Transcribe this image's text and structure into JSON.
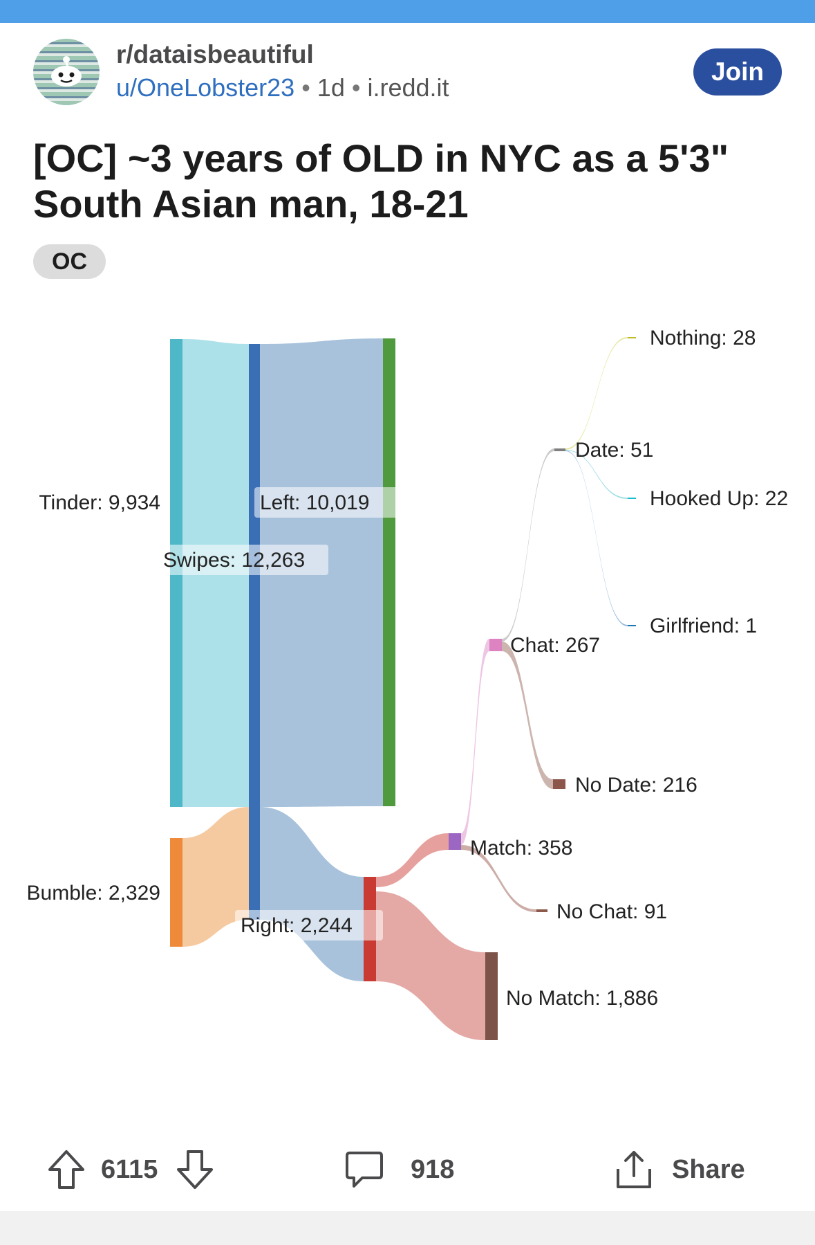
{
  "post": {
    "subreddit": "r/dataisbeautiful",
    "user": "u/OneLobster23",
    "age": "1d",
    "domain": "i.redd.it",
    "join_label": "Join",
    "title": "[OC] ~3 years of OLD in NYC as a 5'3\" South Asian man, 18-21",
    "flair": "OC"
  },
  "chart_data": {
    "type": "sankey",
    "nodes": [
      {
        "id": "tinder",
        "label": "Tinder: 9,934",
        "value": 9934,
        "color": "#4eb8c9"
      },
      {
        "id": "bumble",
        "label": "Bumble: 2,329",
        "value": 2329,
        "color": "#ee8a3a"
      },
      {
        "id": "swipes",
        "label": "Swipes: 12,263",
        "value": 12263,
        "color": "#3a6fb5"
      },
      {
        "id": "left",
        "label": "Left: 10,019",
        "value": 10019,
        "color": "#4f9a3c"
      },
      {
        "id": "right",
        "label": "Right: 2,244",
        "value": 2244,
        "color": "#c93a32"
      },
      {
        "id": "match",
        "label": "Match: 358",
        "value": 358,
        "color": "#9b67c2"
      },
      {
        "id": "nomatch",
        "label": "No Match: 1,886",
        "value": 1886,
        "color": "#7d5349"
      },
      {
        "id": "chat",
        "label": "Chat: 267",
        "value": 267,
        "color": "#dd83c2"
      },
      {
        "id": "nochat",
        "label": "No Chat: 91",
        "value": 91,
        "color": "#8c5a4c"
      },
      {
        "id": "date",
        "label": "Date: 51",
        "value": 51,
        "color": "#7f7f7f"
      },
      {
        "id": "nodate",
        "label": "No Date: 216",
        "value": 216,
        "color": "#8c564b"
      },
      {
        "id": "nothing",
        "label": "Nothing: 28",
        "value": 28,
        "color": "#bcbd22"
      },
      {
        "id": "hookedup",
        "label": "Hooked Up: 22",
        "value": 22,
        "color": "#17becf"
      },
      {
        "id": "girlfriend",
        "label": "Girlfriend: 1",
        "value": 1,
        "color": "#1f77b4"
      }
    ],
    "links": [
      {
        "source": "tinder",
        "target": "swipes",
        "value": 9934,
        "color": "#a8dfe8"
      },
      {
        "source": "bumble",
        "target": "swipes",
        "value": 2329,
        "color": "#f5c79b"
      },
      {
        "source": "swipes",
        "target": "left",
        "value": 10019,
        "color": "#a3bfda"
      },
      {
        "source": "swipes",
        "target": "right",
        "value": 2244,
        "color": "#a3bfda"
      },
      {
        "source": "right",
        "target": "match",
        "value": 358,
        "color": "#e59c99"
      },
      {
        "source": "right",
        "target": "nomatch",
        "value": 1886,
        "color": "#e3a3a0"
      },
      {
        "source": "match",
        "target": "chat",
        "value": 267,
        "color": "#ecc3e2"
      },
      {
        "source": "match",
        "target": "nochat",
        "value": 91,
        "color": "#c9a9a2"
      },
      {
        "source": "chat",
        "target": "date",
        "value": 51,
        "color": "#c7c7c7"
      },
      {
        "source": "chat",
        "target": "nodate",
        "value": 216,
        "color": "#c9b1aa"
      },
      {
        "source": "date",
        "target": "nothing",
        "value": 28,
        "color": "#e5e59a"
      },
      {
        "source": "date",
        "target": "hookedup",
        "value": 22,
        "color": "#9edbe6"
      },
      {
        "source": "date",
        "target": "girlfriend",
        "value": 1,
        "color": "#8fb7dd"
      }
    ]
  },
  "actions": {
    "upvotes": "6115",
    "comments": "918",
    "share_label": "Share"
  }
}
